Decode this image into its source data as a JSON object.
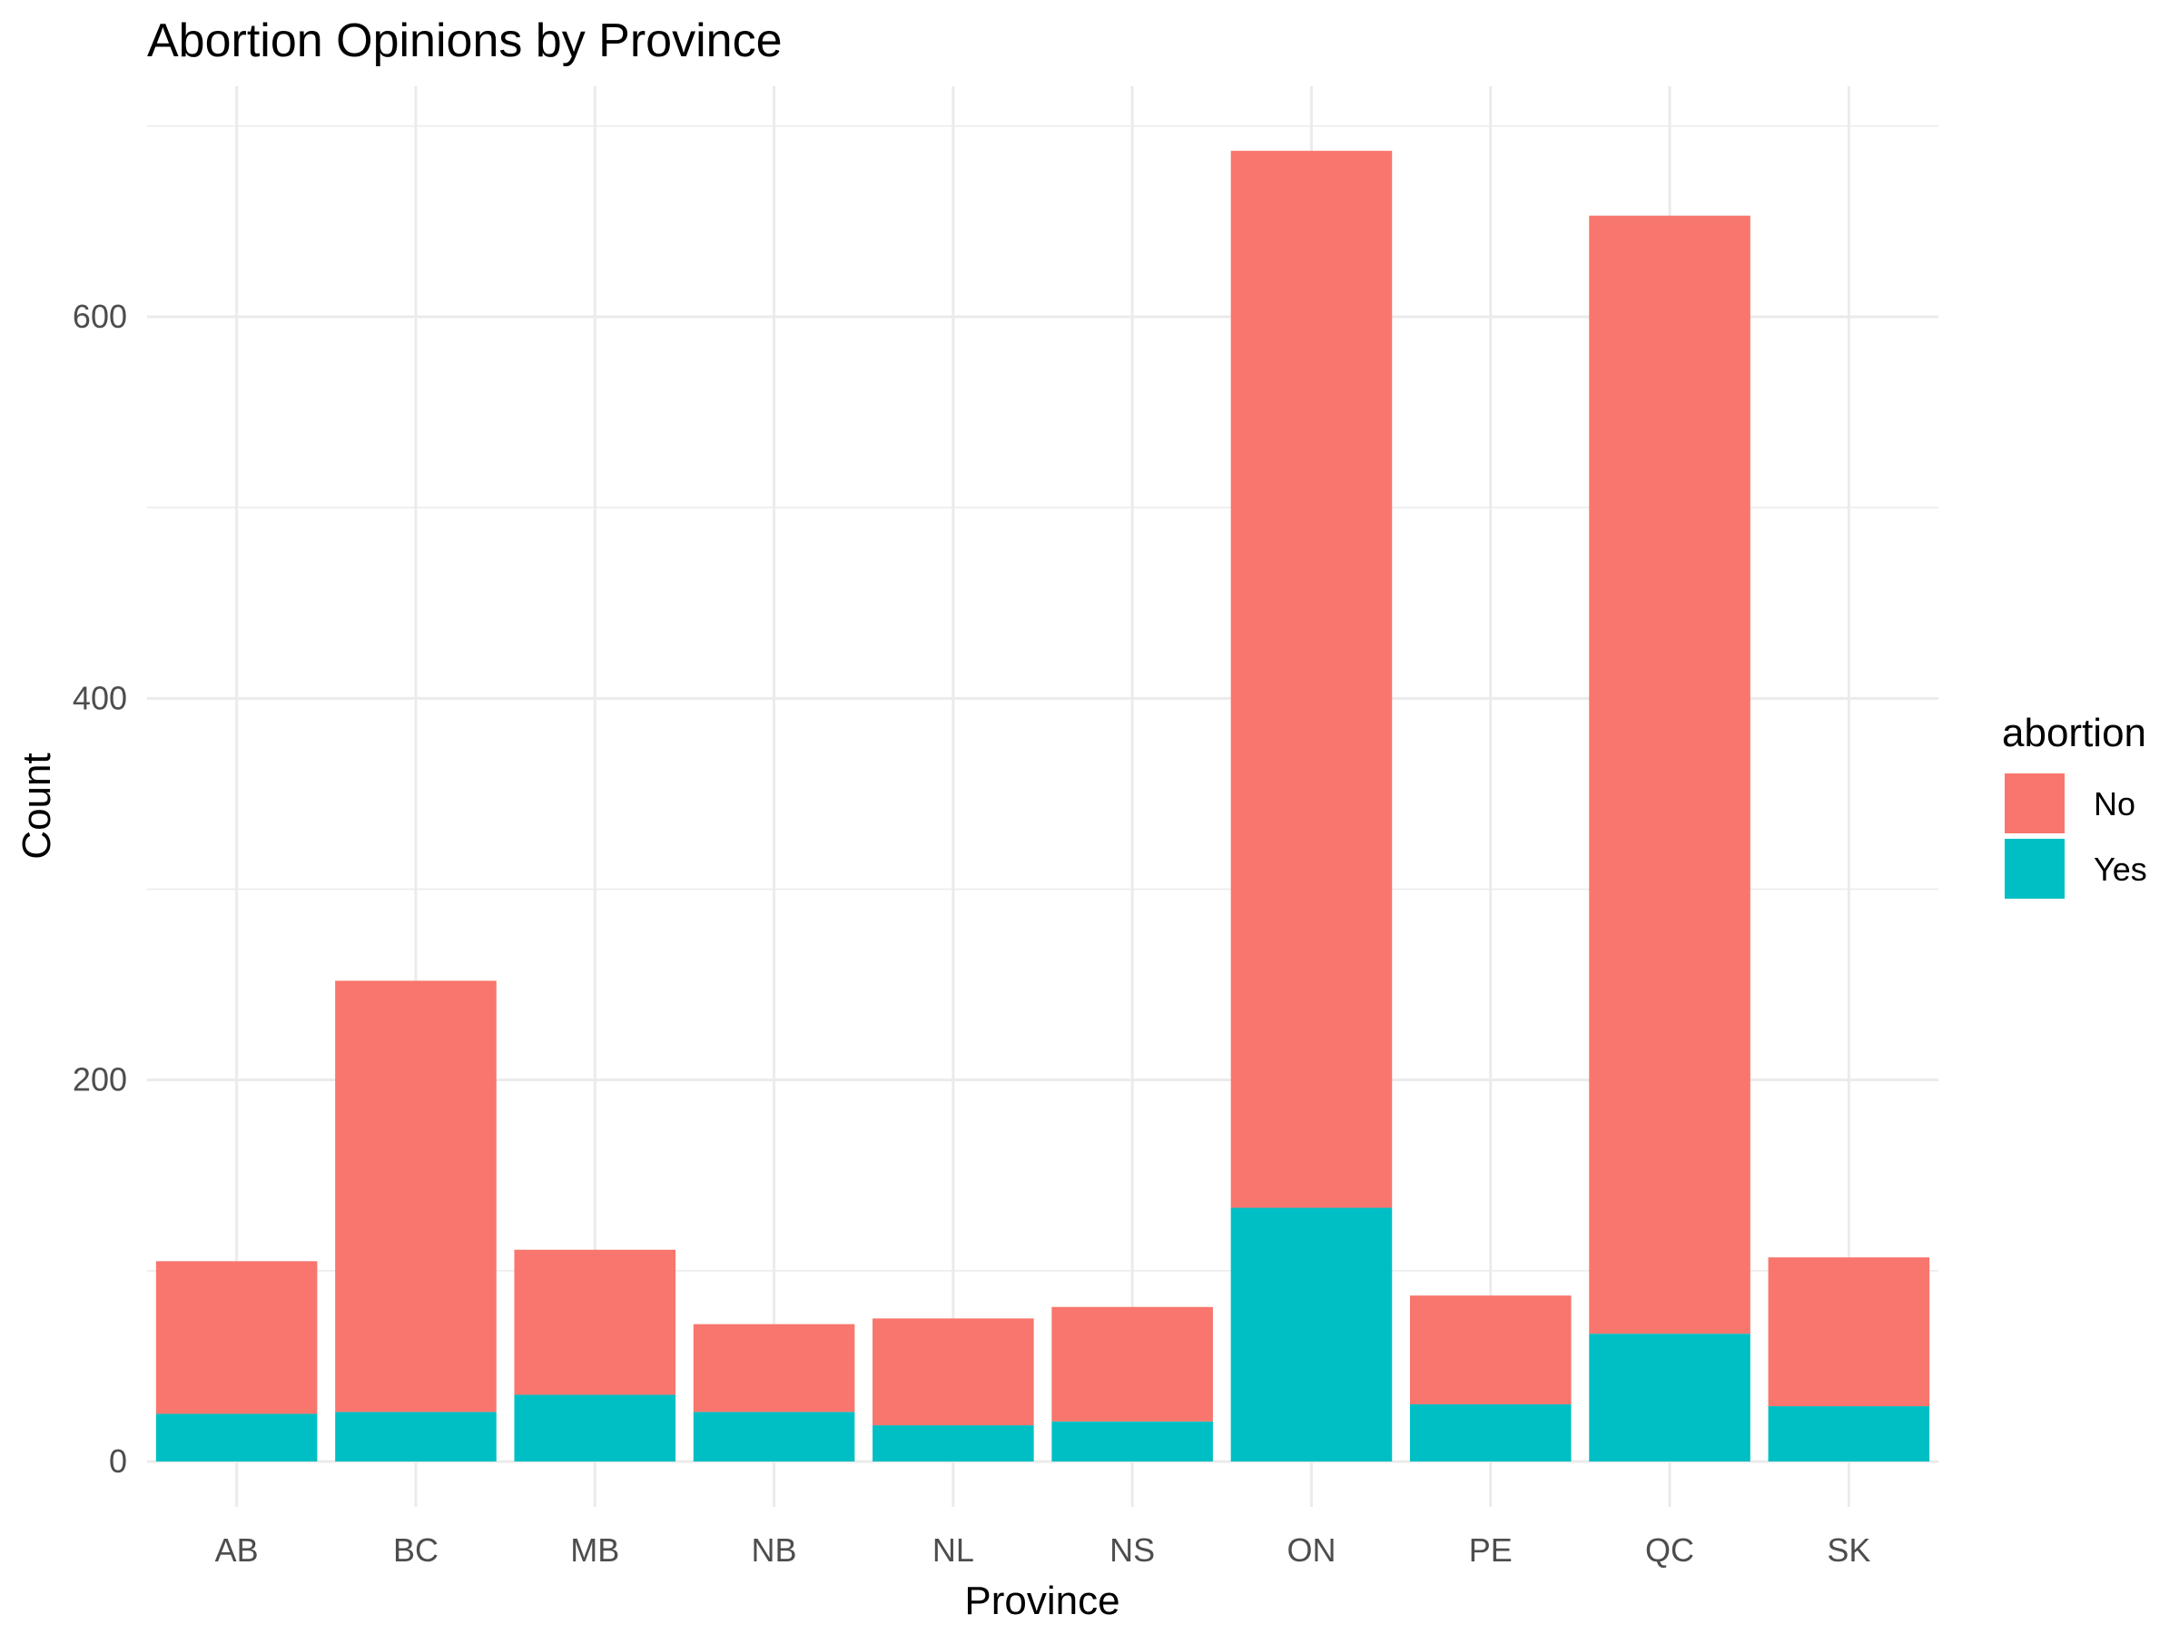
{
  "chart_data": {
    "type": "bar",
    "stacked": true,
    "title": "Abortion Opinions by Province",
    "xlabel": "Province",
    "ylabel": "Count",
    "categories": [
      "AB",
      "BC",
      "MB",
      "NB",
      "NL",
      "NS",
      "ON",
      "PE",
      "QC",
      "SK"
    ],
    "series": [
      {
        "name": "No",
        "color": "#F8766D",
        "values": [
          80,
          226,
          76,
          46,
          56,
          60,
          554,
          57,
          586,
          78
        ]
      },
      {
        "name": "Yes",
        "color": "#00BFC4",
        "values": [
          25,
          26,
          35,
          26,
          19,
          21,
          133,
          30,
          67,
          29
        ]
      }
    ],
    "ylim": [
      0,
      700
    ],
    "yticks": [
      0,
      200,
      400,
      600
    ],
    "legend": {
      "title": "abortion",
      "position": "right"
    },
    "grid": true
  }
}
